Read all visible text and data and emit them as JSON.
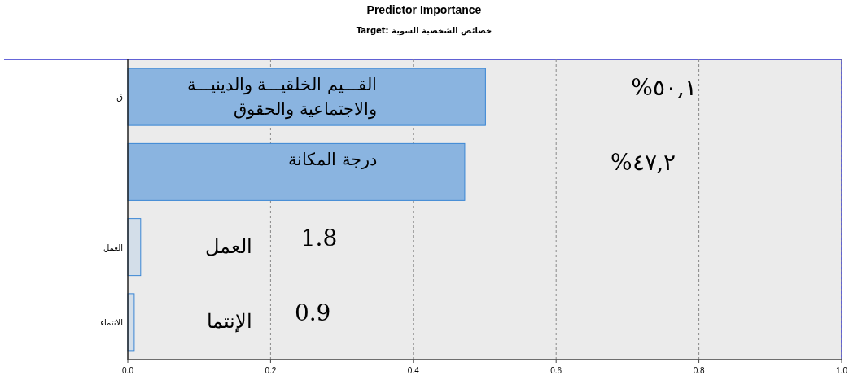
{
  "chart_data": {
    "type": "bar",
    "orientation": "horizontal",
    "title": "Predictor Importance",
    "subtitle": "Target: خصائص الشخصية السوية",
    "categories": [
      "ق",
      null,
      "العمل",
      "الانتماء"
    ],
    "values": [
      0.501,
      0.472,
      0.018,
      0.009
    ],
    "colors": [
      "#8ab4e0",
      "#8ab4e0",
      "#d3dee9",
      "#d3dee9"
    ],
    "annotations": [
      "القـــيم الخلقيـــة والدينيـــة والاجتماعية والحقوق",
      "درجة المكانة",
      "العمل",
      "الإنتما",
      "%٥٠,١",
      "%٤٧,٢",
      "1.8",
      "0.9"
    ],
    "xlim": [
      0,
      1
    ],
    "xticks": [
      {
        "value": 0,
        "label": "0.0"
      },
      {
        "value": 0.2,
        "label": "0.2"
      },
      {
        "value": 0.4,
        "label": "0.4"
      },
      {
        "value": 0.6,
        "label": "0.6"
      },
      {
        "value": 0.8,
        "label": "0.8"
      },
      {
        "value": 1,
        "label": "1.0"
      }
    ],
    "grid": "x"
  }
}
